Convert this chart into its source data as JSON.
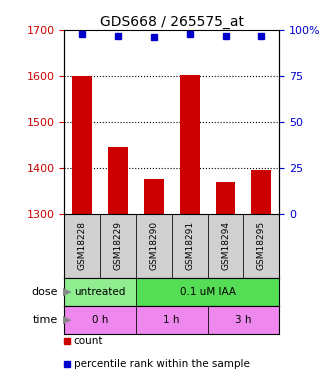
{
  "title": "GDS668 / 265575_at",
  "samples": [
    "GSM18228",
    "GSM18229",
    "GSM18290",
    "GSM18291",
    "GSM18294",
    "GSM18295"
  ],
  "bar_values": [
    1600,
    1445,
    1375,
    1602,
    1370,
    1395
  ],
  "bar_base": 1300,
  "bar_color": "#cc0000",
  "dot_values": [
    98,
    97,
    96,
    98,
    97,
    97
  ],
  "dot_color": "#0000cc",
  "left_ylim": [
    1300,
    1700
  ],
  "left_yticks": [
    1300,
    1400,
    1500,
    1600,
    1700
  ],
  "right_ylim": [
    0,
    100
  ],
  "right_yticks": [
    0,
    25,
    50,
    75,
    100
  ],
  "right_yticklabels": [
    "0",
    "25",
    "50",
    "75",
    "100%"
  ],
  "left_tick_color": "#cc0000",
  "right_tick_color": "#0000cc",
  "dose_labels": [
    {
      "text": "untreated",
      "start": 0,
      "end": 2,
      "color": "#90ee90"
    },
    {
      "text": "0.1 uM IAA",
      "start": 2,
      "end": 6,
      "color": "#55dd55"
    }
  ],
  "time_labels": [
    {
      "text": "0 h",
      "start": 0,
      "end": 2,
      "color": "#ee88ee"
    },
    {
      "text": "1 h",
      "start": 2,
      "end": 4,
      "color": "#ee88ee"
    },
    {
      "text": "3 h",
      "start": 4,
      "end": 6,
      "color": "#ee88ee"
    }
  ],
  "legend_count_color": "#cc0000",
  "legend_dot_color": "#0000cc",
  "grid_color": "black",
  "sample_bg": "#d0d0d0",
  "tick_label_fontsize": 8,
  "title_fontsize": 10
}
